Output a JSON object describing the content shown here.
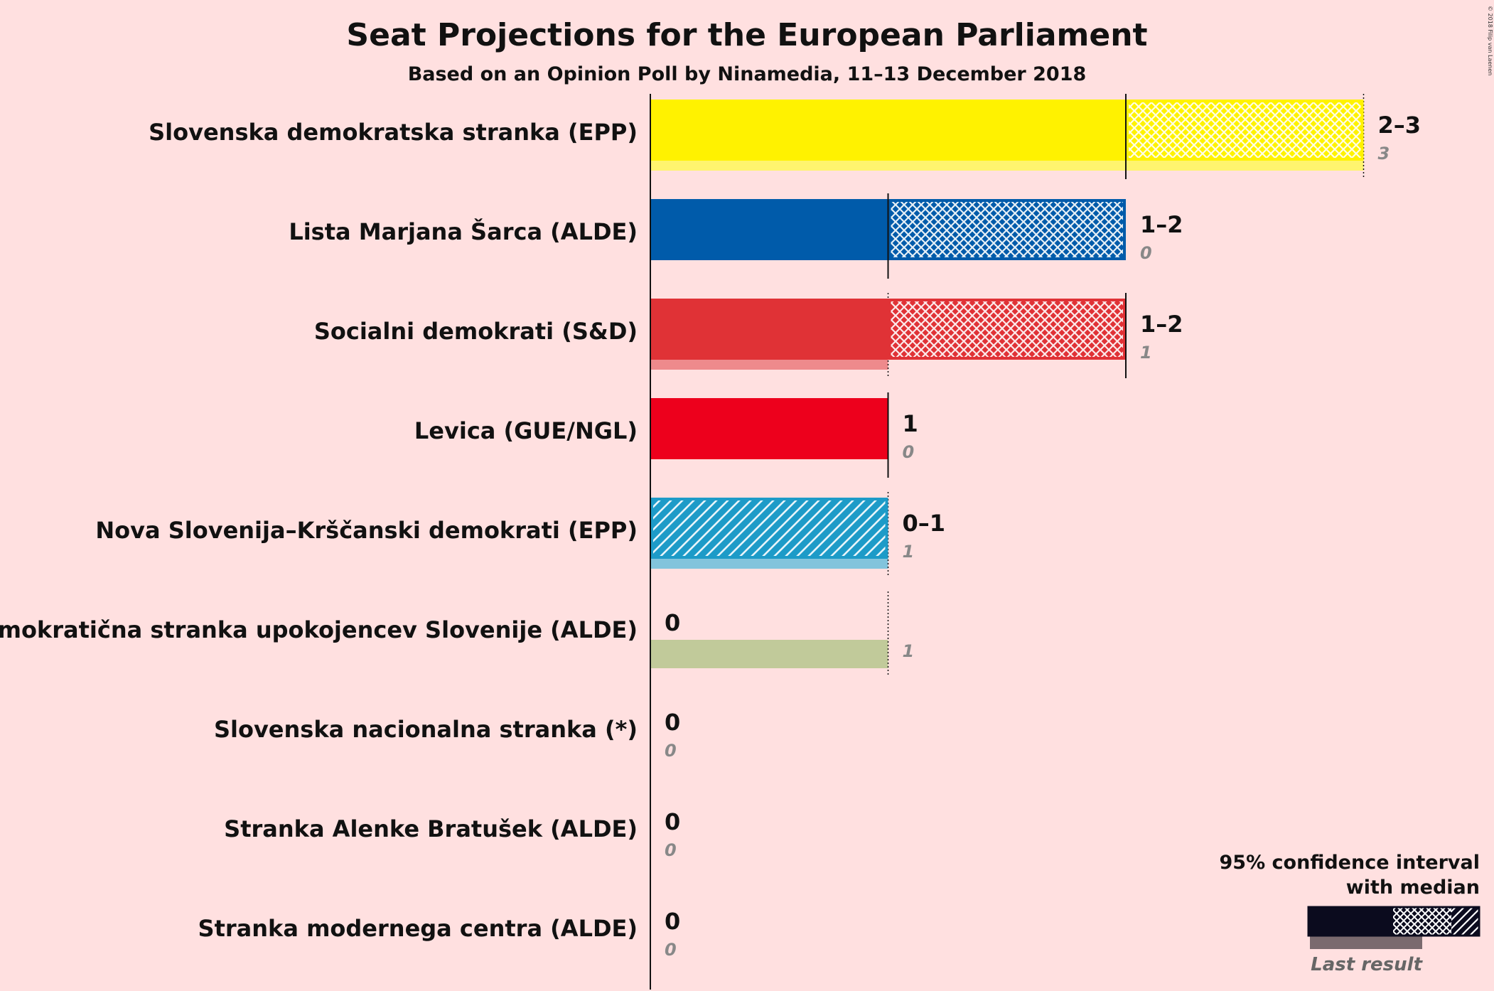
{
  "title": "Seat Projections for the European Parliament",
  "subtitle": "Based on an Opinion Poll by Ninamedia, 11–13 December 2018",
  "copyright": "© 2018 Filip van Laenen",
  "legend": {
    "title_line1": "95% confidence interval",
    "title_line2": "with median",
    "last_result": "Last result"
  },
  "chart_data": {
    "type": "bar",
    "orientation": "horizontal",
    "title": "Seat Projections for the European Parliament",
    "subtitle": "Based on an Opinion Poll by Ninamedia, 11–13 December 2018",
    "xlim": [
      0,
      3
    ],
    "parties": [
      {
        "name": "Slovenska demokratska stranka (EPP)",
        "color": "#FFF200",
        "low": 2,
        "median": 2,
        "high": 3,
        "range_label": "2–3",
        "last": 3,
        "last_label": "3"
      },
      {
        "name": "Lista Marjana Šarca (ALDE)",
        "color": "#005BAA",
        "low": 1,
        "median": 1,
        "high": 2,
        "range_label": "1–2",
        "last": 0,
        "last_label": "0"
      },
      {
        "name": "Socialni demokrati (S&D)",
        "color": "#E03236",
        "low": 1,
        "median": 2,
        "high": 2,
        "range_label": "1–2",
        "last": 1,
        "last_label": "1"
      },
      {
        "name": "Levica (GUE/NGL)",
        "color": "#ED001C",
        "low": 1,
        "median": 1,
        "high": 1,
        "range_label": "1",
        "last": 0,
        "last_label": "0"
      },
      {
        "name": "Nova Slovenija–Krščanski demokrati (EPP)",
        "color": "#1D9BC8",
        "low": 0,
        "median": 0,
        "high": 1,
        "range_label": "0–1",
        "last": 1,
        "last_label": "1"
      },
      {
        "name": "Demokratična stranka upokojencev Slovenije (ALDE)",
        "color": "#8FA850",
        "low": 0,
        "median": 0,
        "high": 0,
        "range_label": "0",
        "last": 1,
        "last_label": "1"
      },
      {
        "name": "Slovenska nacionalna stranka (*)",
        "color": "#444444",
        "low": 0,
        "median": 0,
        "high": 0,
        "range_label": "0",
        "last": 0,
        "last_label": "0"
      },
      {
        "name": "Stranka Alenke Bratušek (ALDE)",
        "color": "#444444",
        "low": 0,
        "median": 0,
        "high": 0,
        "range_label": "0",
        "last": 0,
        "last_label": "0"
      },
      {
        "name": "Stranka modernega centra (ALDE)",
        "color": "#444444",
        "low": 0,
        "median": 0,
        "high": 0,
        "range_label": "0",
        "last": 0,
        "last_label": "0",
        "hide_last_label": false
      }
    ]
  }
}
